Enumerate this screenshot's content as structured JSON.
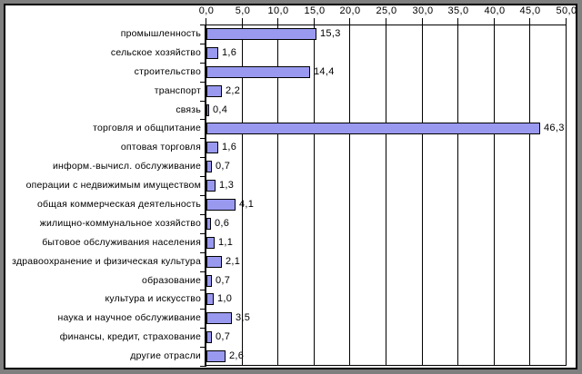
{
  "chart_data": {
    "type": "bar",
    "orientation": "horizontal",
    "title": "",
    "xlabel": "",
    "ylabel": "",
    "xlim": [
      0,
      50
    ],
    "x_ticks": [
      0,
      5,
      10,
      15,
      20,
      25,
      30,
      35,
      40,
      45,
      50
    ],
    "x_tick_labels": [
      "0,0",
      "5,0",
      "10,0",
      "15,0",
      "20,0",
      "25,0",
      "30,0",
      "35,0",
      "40,0",
      "45,0",
      "50,0"
    ],
    "grid": true,
    "legend": false,
    "categories": [
      "промышленность",
      "сельское хозяйство",
      "строительство",
      "транспорт",
      "связь",
      "торговля и общпитание",
      "оптовая торговля",
      "информ.-вычисл. обслуживание",
      "операции с недвижимым имуществом",
      "общая коммерческая деятельность",
      "жилищно-коммунальное хозяйство",
      "бытовое обслуживания населения",
      "здравоохранение и физическая культура",
      "образование",
      "культура и искусство",
      "наука и научное обслуживание",
      "финансы, кредит, страхование",
      "другие отрасли"
    ],
    "values": [
      15.3,
      1.6,
      14.4,
      2.2,
      0.4,
      46.3,
      1.6,
      0.7,
      1.3,
      4.1,
      0.6,
      1.1,
      2.1,
      0.7,
      1.0,
      3.5,
      0.7,
      2.6
    ],
    "value_labels": [
      "15,3",
      "1,6",
      "14,4",
      "2,2",
      "0,4",
      "46,3",
      "1,6",
      "0,7",
      "1,3",
      "4,1",
      "0,6",
      "1,1",
      "2,1",
      "0,7",
      "1,0",
      "3,5",
      "0,7",
      "2,6"
    ],
    "bar_color": "#9999F0",
    "bar_border_color": "#000000",
    "grid_color": "#000000",
    "text_color": "#000000"
  },
  "colors": {
    "background": "#7F7F7F",
    "panel": "#FFFFFF",
    "panel_border": "#000000"
  }
}
